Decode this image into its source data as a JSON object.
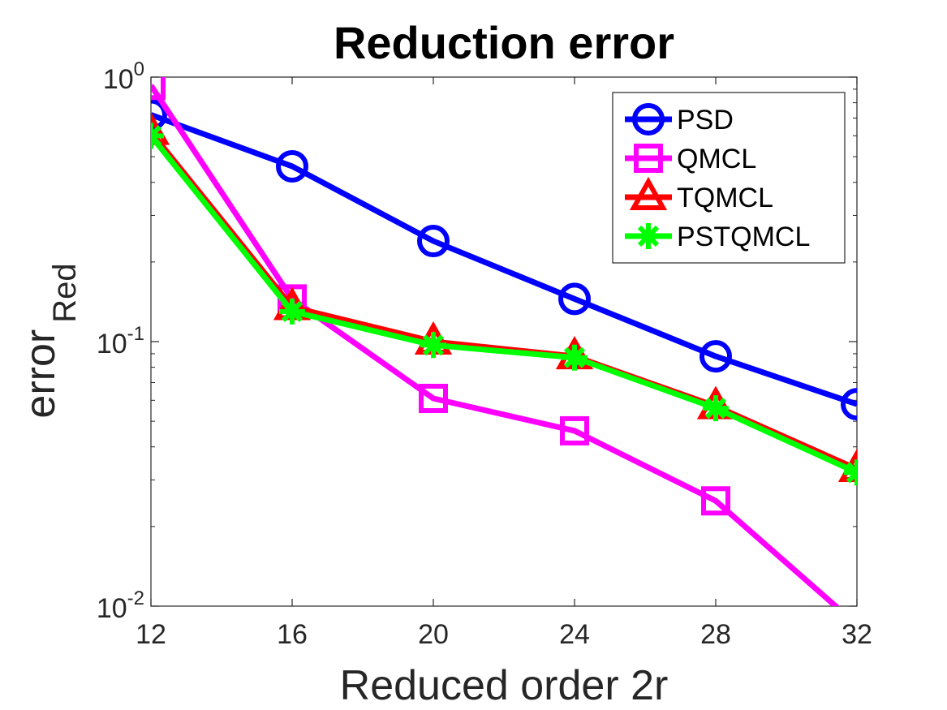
{
  "chart_data": {
    "type": "line",
    "title": "Reduction error",
    "xlabel": "Reduced order 2r",
    "ylabel_main": "error",
    "ylabel_sub": "Red",
    "x": [
      12,
      16,
      20,
      24,
      28,
      32
    ],
    "xticks": [
      "12",
      "16",
      "20",
      "24",
      "28",
      "32"
    ],
    "yscale": "log",
    "ylim": [
      0.01,
      1
    ],
    "yticks": [
      {
        "base": "10",
        "exp": "-2",
        "value": 0.01
      },
      {
        "base": "10",
        "exp": "-1",
        "value": 0.1
      },
      {
        "base": "10",
        "exp": "0",
        "value": 1
      }
    ],
    "xlim": [
      12,
      32
    ],
    "grid": false,
    "legend_position": "top-right",
    "series": [
      {
        "name": "PSD",
        "color": "#0000ff",
        "marker": "circle",
        "values": [
          0.72,
          0.46,
          0.24,
          0.145,
          0.088,
          0.058
        ]
      },
      {
        "name": "QMCL",
        "color": "#ff00ff",
        "marker": "square",
        "values": [
          0.93,
          0.145,
          0.061,
          0.046,
          0.025,
          0.0085
        ]
      },
      {
        "name": "TQMCL",
        "color": "#ff0000",
        "marker": "triangle",
        "values": [
          0.62,
          0.135,
          0.1,
          0.088,
          0.057,
          0.033
        ]
      },
      {
        "name": "PSTQMCL",
        "color": "#00ff00",
        "marker": "asterisk",
        "values": [
          0.6,
          0.13,
          0.097,
          0.087,
          0.056,
          0.032
        ]
      }
    ]
  }
}
